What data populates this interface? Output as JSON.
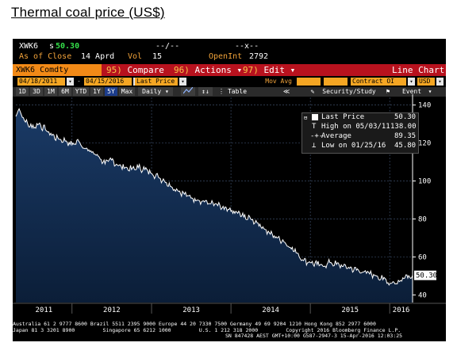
{
  "page_title": "Thermal coal price (US$)",
  "header": {
    "ticker": "XWK6",
    "s_label": "s",
    "last_price": "50.30",
    "bid_ask": "--/--",
    "x_field": "--x--",
    "as_of_label": "As of Close",
    "as_of_date": "14 Aprd",
    "vol_label": "Vol",
    "vol_value": "15",
    "open_int_label": "OpenInt",
    "open_int_value": "2792"
  },
  "menu": {
    "security": "XWK6 Comdty",
    "compare_num": "95)",
    "compare": "Compare",
    "actions_num": "96)",
    "actions": "Actions ▾",
    "edit_num": "97)",
    "edit": "Edit ▾",
    "chart_type": "Line Chart"
  },
  "fields": {
    "start_date": "04/18/2011",
    "end_date": "04/15/2016",
    "price_field": "Last Price",
    "mov_avg": "Mov Avg",
    "contract": "Contract OI",
    "currency": "USD"
  },
  "toolbar": {
    "periods": [
      "1D",
      "3D",
      "1M",
      "6M",
      "YTD",
      "1Y",
      "5Y",
      "Max"
    ],
    "selected_period": "5Y",
    "frequency": "Daily ▾",
    "table": "Table",
    "back": "≪",
    "security_study": "Security/Study",
    "event": "Event"
  },
  "legend": {
    "last_price_label": "Last Price",
    "last_price_value": "50.30",
    "high_label": "High on 05/03/11",
    "high_value": "138.00",
    "average_label": "Average",
    "average_value": "89.35",
    "low_label": "Low on 01/25/16",
    "low_value": "45.80"
  },
  "footer": {
    "line1": "Australia 61 2 9777 8600 Brazil 5511 2395 9000 Europe 44 20 7330 7500 Germany 49 69 9204 1210 Hong Kong 852 2977 6000",
    "line2": "Japan 81 3 3201 8900         Singapore 65 6212 1000         U.S. 1 212 318 2000         Copyright 2016 Bloomberg Finance L.P.",
    "line3": "SN 847428 AEST GMT+10:00 G587-2947-3 15-Apr-2016 12:03:25"
  },
  "colors": {
    "background": "#000000",
    "area_fill": "#0f2a4d",
    "line": "#ffffff",
    "accent_amber": "#f2a33a",
    "menu_red": "#b8121e"
  },
  "chart_data": {
    "type": "area",
    "title": "Thermal coal price (US$)",
    "x_tick_labels": [
      "2011",
      "2012",
      "2013",
      "2014",
      "2015",
      "2016"
    ],
    "y_tick_labels": [
      "40",
      "60",
      "80",
      "100",
      "120",
      "140"
    ],
    "ylim": [
      36,
      144
    ],
    "xlim": [
      "2011-04-18",
      "2016-04-15"
    ],
    "grid": true,
    "last_value_label": "50.30",
    "series": [
      {
        "name": "Last Price",
        "points": [
          [
            "2011-04-18",
            134
          ],
          [
            "2011-05-03",
            138
          ],
          [
            "2011-06-01",
            131
          ],
          [
            "2011-07-01",
            128
          ],
          [
            "2011-08-01",
            130
          ],
          [
            "2011-09-01",
            127
          ],
          [
            "2011-10-01",
            124
          ],
          [
            "2011-11-01",
            122
          ],
          [
            "2011-12-01",
            121
          ],
          [
            "2012-01-01",
            119
          ],
          [
            "2012-02-01",
            121
          ],
          [
            "2012-03-01",
            117
          ],
          [
            "2012-04-01",
            115
          ],
          [
            "2012-05-01",
            113
          ],
          [
            "2012-06-01",
            109
          ],
          [
            "2012-07-01",
            111
          ],
          [
            "2012-08-01",
            108
          ],
          [
            "2012-09-01",
            107
          ],
          [
            "2012-10-01",
            106
          ],
          [
            "2012-11-01",
            107
          ],
          [
            "2012-12-01",
            106
          ],
          [
            "2013-01-01",
            104
          ],
          [
            "2013-02-01",
            102
          ],
          [
            "2013-03-01",
            100
          ],
          [
            "2013-04-01",
            97
          ],
          [
            "2013-05-01",
            95
          ],
          [
            "2013-06-01",
            93
          ],
          [
            "2013-07-01",
            91
          ],
          [
            "2013-08-01",
            90
          ],
          [
            "2013-09-01",
            89
          ],
          [
            "2013-10-01",
            88
          ],
          [
            "2013-11-01",
            87
          ],
          [
            "2013-12-01",
            85
          ],
          [
            "2014-01-01",
            84
          ],
          [
            "2014-02-01",
            83
          ],
          [
            "2014-03-01",
            81
          ],
          [
            "2014-04-01",
            80
          ],
          [
            "2014-05-01",
            78
          ],
          [
            "2014-06-01",
            75
          ],
          [
            "2014-07-01",
            72
          ],
          [
            "2014-08-01",
            70
          ],
          [
            "2014-09-01",
            68
          ],
          [
            "2014-10-01",
            65
          ],
          [
            "2014-11-01",
            62
          ],
          [
            "2014-12-01",
            58
          ],
          [
            "2015-01-01",
            57
          ],
          [
            "2015-02-01",
            56
          ],
          [
            "2015-03-01",
            55
          ],
          [
            "2015-04-01",
            57
          ],
          [
            "2015-05-01",
            56
          ],
          [
            "2015-06-01",
            55
          ],
          [
            "2015-07-01",
            54
          ],
          [
            "2015-08-01",
            53
          ],
          [
            "2015-09-01",
            52
          ],
          [
            "2015-10-01",
            51
          ],
          [
            "2015-11-01",
            50
          ],
          [
            "2015-12-01",
            48
          ],
          [
            "2016-01-25",
            45.8
          ],
          [
            "2016-02-15",
            47
          ],
          [
            "2016-03-01",
            49
          ],
          [
            "2016-03-20",
            50.5
          ],
          [
            "2016-04-01",
            49.5
          ],
          [
            "2016-04-15",
            50.3
          ]
        ]
      }
    ]
  }
}
